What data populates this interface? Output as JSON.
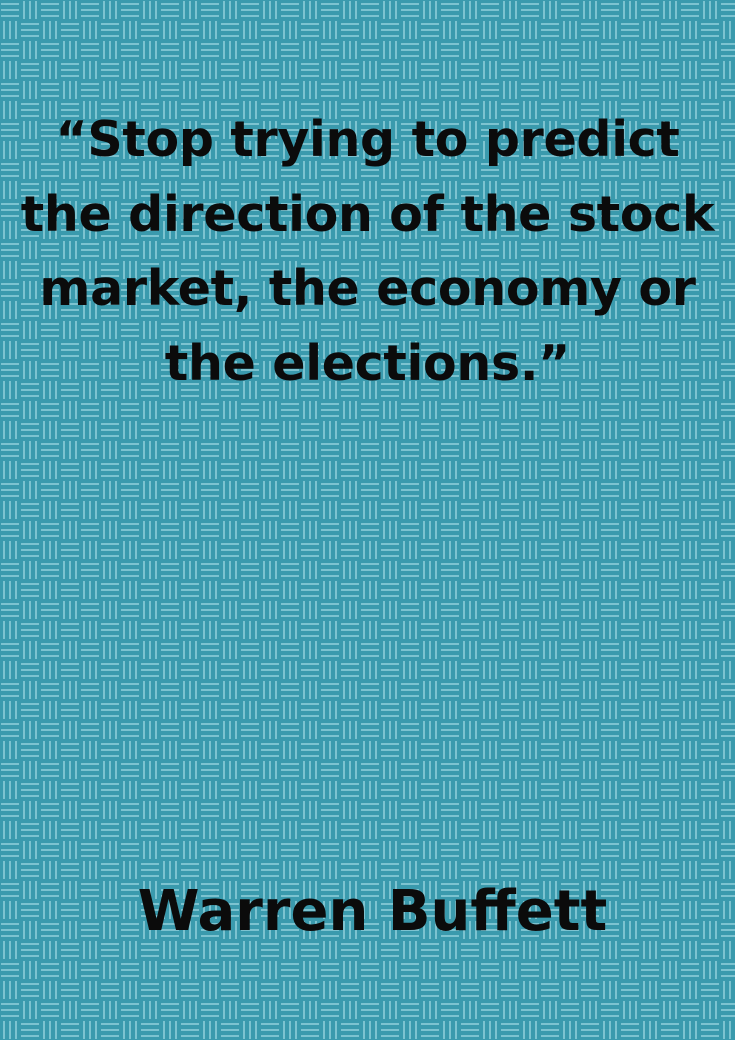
{
  "quote": {
    "text": "“Stop trying to predict the direction of the stock market, the economy or the elections.”"
  },
  "author": {
    "name": "Warren Buffett"
  },
  "background": {
    "pattern": "basketweave",
    "base_color": "#3a9aad",
    "stripe_color": "#7cc3d0",
    "text_color": "#0b0b0b"
  }
}
